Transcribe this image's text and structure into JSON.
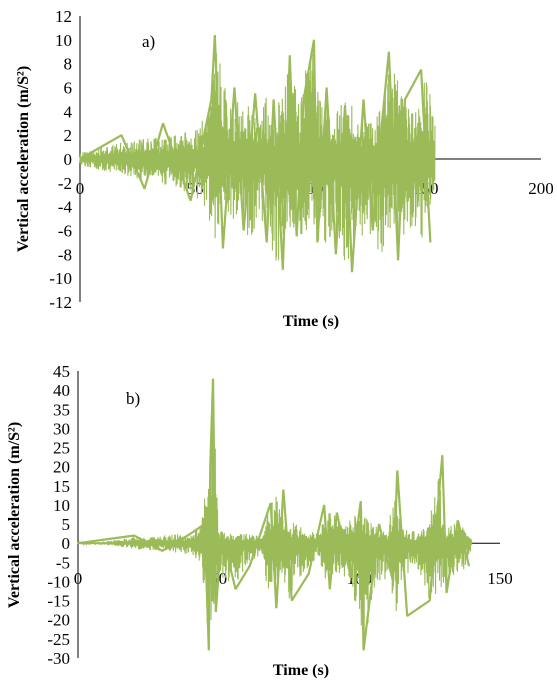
{
  "chart_data": [
    {
      "type": "line",
      "panel_label": "a)",
      "xlabel": "Time (s)",
      "ylabel": "Vertical acceleration (m/S²)",
      "xlim": [
        0,
        200
      ],
      "ylim": [
        -12,
        12
      ],
      "x_ticks": [
        0,
        50,
        100,
        150,
        200
      ],
      "y_ticks": [
        12,
        10,
        8,
        6,
        4,
        2,
        0,
        -2,
        -4,
        -6,
        -8,
        -10,
        -12
      ],
      "line_color": "#9bbb59",
      "grid": false,
      "envelope": {
        "x": [
          0,
          10,
          20,
          30,
          40,
          50,
          55,
          60,
          65,
          70,
          75,
          80,
          85,
          90,
          95,
          100,
          105,
          110,
          115,
          120,
          125,
          130,
          135,
          140,
          145,
          150,
          154
        ],
        "upper": [
          0.5,
          1,
          1.5,
          1.8,
          2,
          2.5,
          4,
          10.4,
          5,
          6,
          4,
          5.5,
          4,
          8.5,
          5,
          10,
          5,
          4,
          5,
          5,
          3,
          4,
          9,
          5,
          4,
          7.5,
          3
        ],
        "lower": [
          -0.5,
          -1,
          -1.5,
          -1.8,
          -2.5,
          -3,
          -5,
          -7.5,
          -5,
          -6,
          -7,
          -5,
          -9.3,
          -6,
          -7,
          -6,
          -8,
          -6,
          -9.5,
          -7,
          -6,
          -8.5,
          -6.5,
          -7,
          -6,
          -7,
          -3
        ]
      },
      "series": [
        {
          "x": [
            0,
            18,
            28,
            36,
            48,
            57,
            58.5,
            62,
            67,
            71,
            76,
            81,
            84,
            88,
            91,
            94,
            97,
            101.5,
            103,
            107,
            111,
            115,
            118,
            123,
            127,
            131,
            134,
            138,
            141,
            148,
            152
          ],
          "y": [
            0,
            2,
            -2.5,
            3,
            -3.5,
            5,
            10.4,
            -7.5,
            6,
            -6,
            5.5,
            -7,
            5,
            -9.3,
            8.7,
            -6.5,
            5,
            10,
            -7,
            6,
            -8,
            4.5,
            -9.5,
            5,
            -6,
            3,
            9,
            -8.5,
            5,
            7.5,
            -7
          ]
        }
      ]
    },
    {
      "type": "line",
      "panel_label": "b)",
      "xlabel": "Time (s)",
      "ylabel": "Vertical acceleration (m/S²)",
      "xlim": [
        0,
        150
      ],
      "ylim": [
        -30,
        45
      ],
      "x_ticks": [
        0,
        50,
        100,
        150
      ],
      "y_ticks": [
        45,
        40,
        35,
        30,
        25,
        20,
        15,
        10,
        5,
        0,
        -5,
        -10,
        -15,
        -20,
        -25,
        -30
      ],
      "line_color": "#9bbb59",
      "grid": false,
      "envelope": {
        "x": [
          0,
          10,
          15,
          20,
          25,
          30,
          35,
          40,
          44,
          46,
          48,
          50,
          55,
          60,
          65,
          68,
          70,
          72,
          75,
          80,
          85,
          88,
          90,
          95,
          100,
          102,
          105,
          110,
          113,
          115,
          120,
          125,
          128,
          130,
          135,
          138,
          140
        ],
        "upper": [
          0.3,
          0.5,
          1,
          2,
          1.5,
          2,
          2.5,
          2,
          6,
          20,
          43,
          3,
          2.5,
          2.5,
          2,
          10,
          14,
          8,
          6,
          4,
          2.5,
          10,
          8,
          5,
          11,
          7,
          5,
          3,
          19,
          4,
          3,
          5,
          23,
          5,
          6,
          3,
          1
        ],
        "lower": [
          -0.3,
          -0.5,
          -1,
          -1.5,
          -2,
          -2,
          -2.5,
          -3,
          -5,
          -28,
          -18,
          -10,
          -12,
          -6,
          -3,
          -17,
          -14,
          -12,
          -15,
          -8,
          -4,
          -12,
          -10,
          -9,
          -19,
          -28,
          -12,
          -10,
          -19,
          -10,
          -6,
          -15,
          -13,
          -12,
          -10,
          -6,
          -1
        ]
      },
      "series": [
        {
          "x": [
            0,
            20,
            30,
            40,
            45,
            46.5,
            47,
            48,
            49,
            51,
            56,
            61,
            68.5,
            70.5,
            73,
            76,
            82,
            87.5,
            89.5,
            92,
            97,
            100.5,
            101.5,
            107,
            112,
            113.5,
            117,
            125,
            129.5,
            131,
            135,
            139
          ],
          "y": [
            0,
            2,
            -2,
            2.5,
            5,
            -28,
            20,
            43,
            -18,
            3,
            -12,
            -6,
            10.5,
            -17,
            14,
            -15,
            -8,
            10,
            -12,
            8,
            -9,
            11,
            -28,
            5,
            -10,
            19,
            -19,
            -15,
            23,
            -13,
            6,
            -6
          ]
        }
      ]
    }
  ]
}
